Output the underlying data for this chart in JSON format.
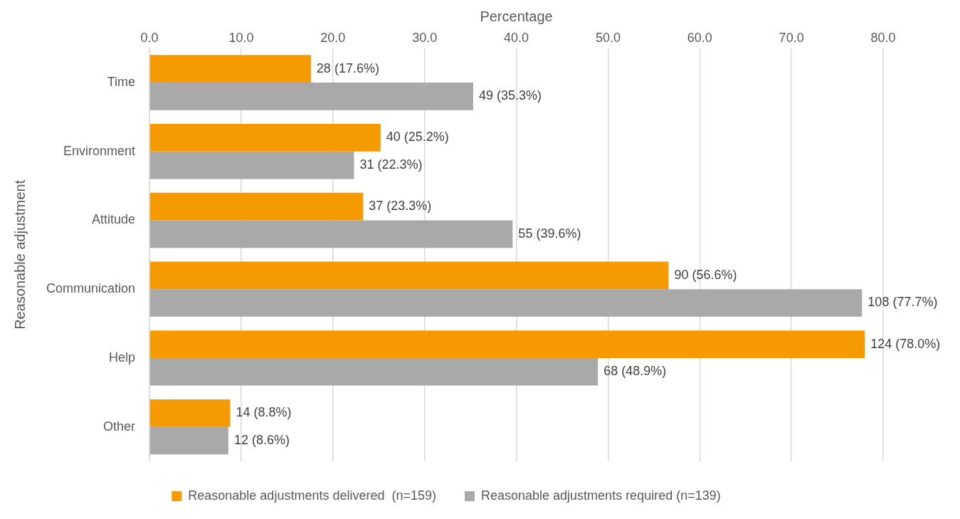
{
  "chart_data": {
    "type": "bar",
    "orientation": "horizontal",
    "xlabel": "Percentage",
    "ylabel": "Reasonable adjustment",
    "categories": [
      "Time",
      "Environment",
      "Attitude",
      "Communication",
      "Help",
      "Other"
    ],
    "series": [
      {
        "name": "Reasonable adjustments delivered  (n=159)",
        "color": "#f59a00",
        "values": [
          17.6,
          25.2,
          23.3,
          56.6,
          78.0,
          8.8
        ],
        "value_labels": [
          "28 (17.6%)",
          "40 (25.2%)",
          "37 (23.3%)",
          "90 (56.6%)",
          "124 (78.0%)",
          "14 (8.8%)"
        ]
      },
      {
        "name": "Reasonable adjustments required (n=139)",
        "color": "#a9a9a9",
        "values": [
          35.3,
          22.3,
          39.6,
          77.7,
          48.9,
          8.6
        ],
        "value_labels": [
          "49 (35.3%)",
          "31 (22.3%)",
          "55 (39.6%)",
          "108 (77.7%)",
          "68 (48.9%)",
          "12 (8.6%)"
        ]
      }
    ],
    "xlim": [
      0,
      80
    ],
    "xticks": [
      {
        "value": 0,
        "label": "0.0"
      },
      {
        "value": 10,
        "label": "10.0"
      },
      {
        "value": 20,
        "label": "20.0"
      },
      {
        "value": 30,
        "label": "30.0"
      },
      {
        "value": 40,
        "label": "40.0"
      },
      {
        "value": 50,
        "label": "50.0"
      },
      {
        "value": 60,
        "label": "60.0"
      },
      {
        "value": 70,
        "label": "70.0"
      },
      {
        "value": 80,
        "label": "80.0"
      }
    ],
    "grid": "x",
    "legend": "bottom"
  }
}
